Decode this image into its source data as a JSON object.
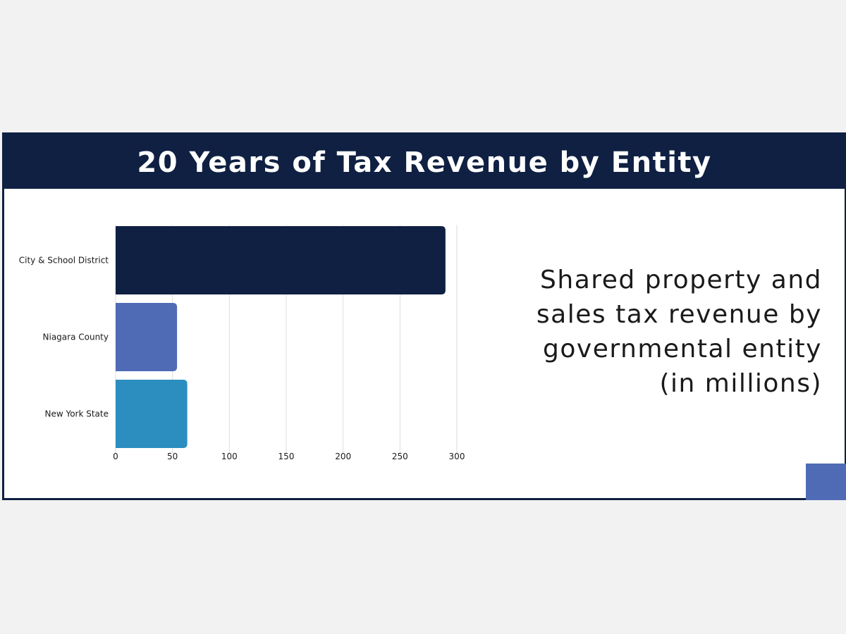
{
  "header": {
    "title": "20 Years of Tax Revenue by Entity"
  },
  "description": "Shared property and sales tax revenue by governmental entity (in millions)",
  "colors": {
    "header_bg": "#0f2042",
    "accent_block": "#4f6bb5"
  },
  "chart_data": {
    "type": "bar",
    "orientation": "horizontal",
    "title": "",
    "xlabel": "",
    "ylabel": "",
    "categories": [
      "City & School District",
      "Niagara County",
      "New York State"
    ],
    "values": [
      290,
      54,
      63
    ],
    "colors": [
      "#0f2042",
      "#4f6bb5",
      "#2b8ebf"
    ],
    "xlim": [
      0,
      300
    ],
    "xticks": [
      0,
      50,
      100,
      150,
      200,
      250,
      300
    ],
    "grid": "vertical"
  }
}
